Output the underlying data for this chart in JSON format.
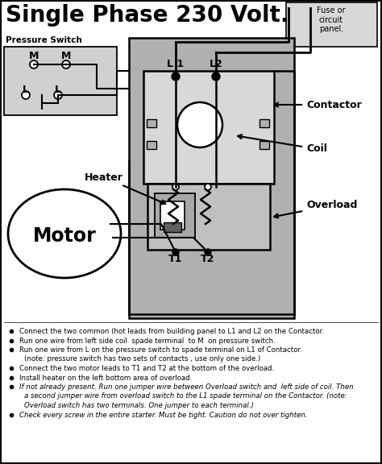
{
  "title": "Single Phase 230 Volt.",
  "title_fontsize": 20,
  "title_fontweight": "bold",
  "bg_color": "#ffffff",
  "panel_bg": "#b0b0b0",
  "contactor_bg": "#c8c8c8",
  "fuse_bg": "#d8d8d8",
  "ps_bg": "#d0d0d0",
  "bullet_items": [
    {
      "text": "Connect the two common (hot leads from building panel to L1 and L2 on the Contactor.",
      "style": "normal",
      "indent": false
    },
    {
      "text": "Run one wire from left side coil  spade terminal  to M  on pressure switch.",
      "style": "normal",
      "indent": false
    },
    {
      "text": "Run one wire from L on the pressure switch to spade terminal on L1 of Contactor.",
      "style": "normal",
      "indent": false
    },
    {
      "text": "(note: pressure switch has two sets of contacts , use only one side.)",
      "style": "normal",
      "indent": true
    },
    {
      "text": "Connect the two motor leads to T1 and T2 at the bottom of the overload.",
      "style": "normal",
      "indent": false
    },
    {
      "text": "Install heater on the left bottom area of overload.",
      "style": "normal",
      "indent": false
    },
    {
      "text": "If not already present.",
      "style": "italic_underline",
      "indent": false,
      "suffix": " Run one jumper wire between Overload switch and  left side of coil. Then"
    },
    {
      "text": "a second jumper wire from overload switch to the L1 spade terminal on the Contactor. (note:",
      "style": "italic",
      "indent": true
    },
    {
      "text": "Overload switch has two terminals. One jumper to each terminal.)",
      "style": "italic",
      "indent": true
    },
    {
      "text": "Check every screw in the entire starter.",
      "style": "italic_underline",
      "indent": false,
      "suffix": " Must be tight. Caution do not "
    },
    {
      "text": "over",
      "style": "italic_underline_inline",
      "suffix": " tighten.",
      "indent": false
    }
  ]
}
